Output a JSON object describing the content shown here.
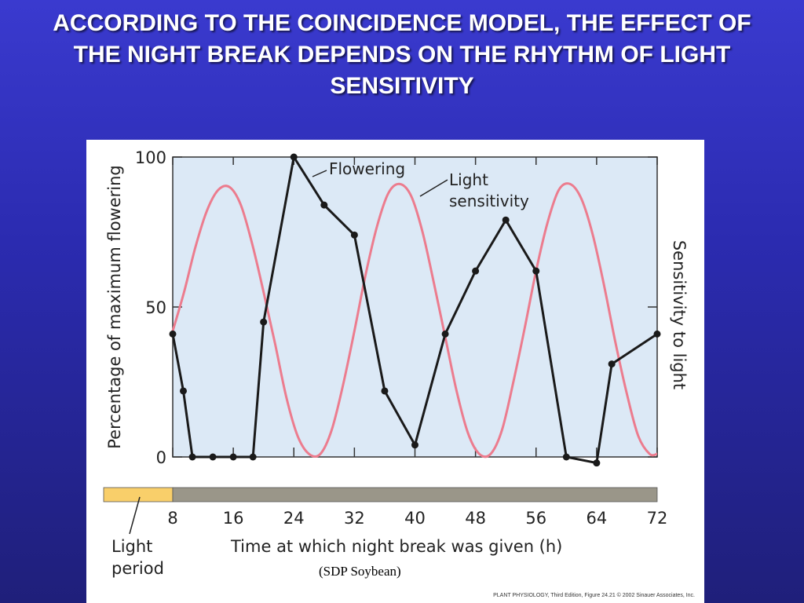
{
  "slide": {
    "title": "ACCORDING TO THE COINCIDENCE MODEL, THE EFFECT OF THE NIGHT BREAK DEPENDS ON THE RHYTHM OF LIGHT SENSITIVITY",
    "subcaption": "(SDP Soybean)",
    "credit": "PLANT PHYSIOLOGY, Third Edition, Figure 24.21  © 2002 Sinauer Associates, Inc."
  },
  "chart_data": {
    "type": "line",
    "title": "",
    "xlabel": "Time at which night break was given (h)",
    "ylabel": "Percentage of maximum flowering",
    "y2label": "Sensitivity to light",
    "xlim": [
      8,
      72
    ],
    "ylim": [
      0,
      100
    ],
    "x_ticks": [
      8,
      16,
      24,
      32,
      40,
      48,
      56,
      64,
      72
    ],
    "y_ticks": [
      0,
      50,
      100
    ],
    "bar_labels": {
      "light_period": "Light period"
    },
    "colors": {
      "plot_bg": "#dce9f6",
      "flowering": "#1a1a1a",
      "sensitivity": "#ec7c8e",
      "light_period": "#f9cf6a",
      "dark_period": "#9a9689"
    },
    "light_period_range": [
      0,
      8
    ],
    "series": [
      {
        "name": "Flowering",
        "x": [
          8,
          9.4,
          10.6,
          13.3,
          16,
          18.6,
          20,
          24,
          28,
          32,
          36,
          40,
          44,
          48,
          52,
          56,
          60,
          64,
          66,
          72
        ],
        "y": [
          41,
          22,
          0,
          0,
          0,
          0,
          45,
          100,
          84,
          74,
          22,
          4,
          41,
          62,
          79,
          62,
          0,
          -2,
          31,
          41
        ]
      },
      {
        "name": "Light sensitivity",
        "x": [
          8,
          9.5,
          11,
          12.5,
          14,
          15.5,
          17,
          18.5,
          20,
          21.5,
          23,
          24.5,
          26,
          27.5,
          29,
          30.5,
          32,
          33.5,
          35,
          36.5,
          38,
          39.5,
          41,
          42.5,
          44,
          45.5,
          47,
          48.5,
          50,
          51.5,
          53,
          54.5,
          56,
          57.5,
          59,
          60.5,
          62,
          63.5,
          65,
          66.5,
          68,
          69.5,
          71,
          72
        ],
        "y": [
          42,
          55,
          70,
          82,
          89,
          90,
          84,
          71,
          55,
          38,
          20,
          7,
          1,
          1,
          9,
          24,
          42,
          61,
          77,
          88,
          91,
          87,
          75,
          58,
          40,
          22,
          8,
          1,
          1,
          9,
          25,
          43,
          62,
          78,
          89,
          91,
          86,
          74,
          57,
          38,
          21,
          7,
          1,
          1
        ]
      }
    ],
    "annotations": [
      "Flowering",
      "Light sensitivity"
    ]
  }
}
